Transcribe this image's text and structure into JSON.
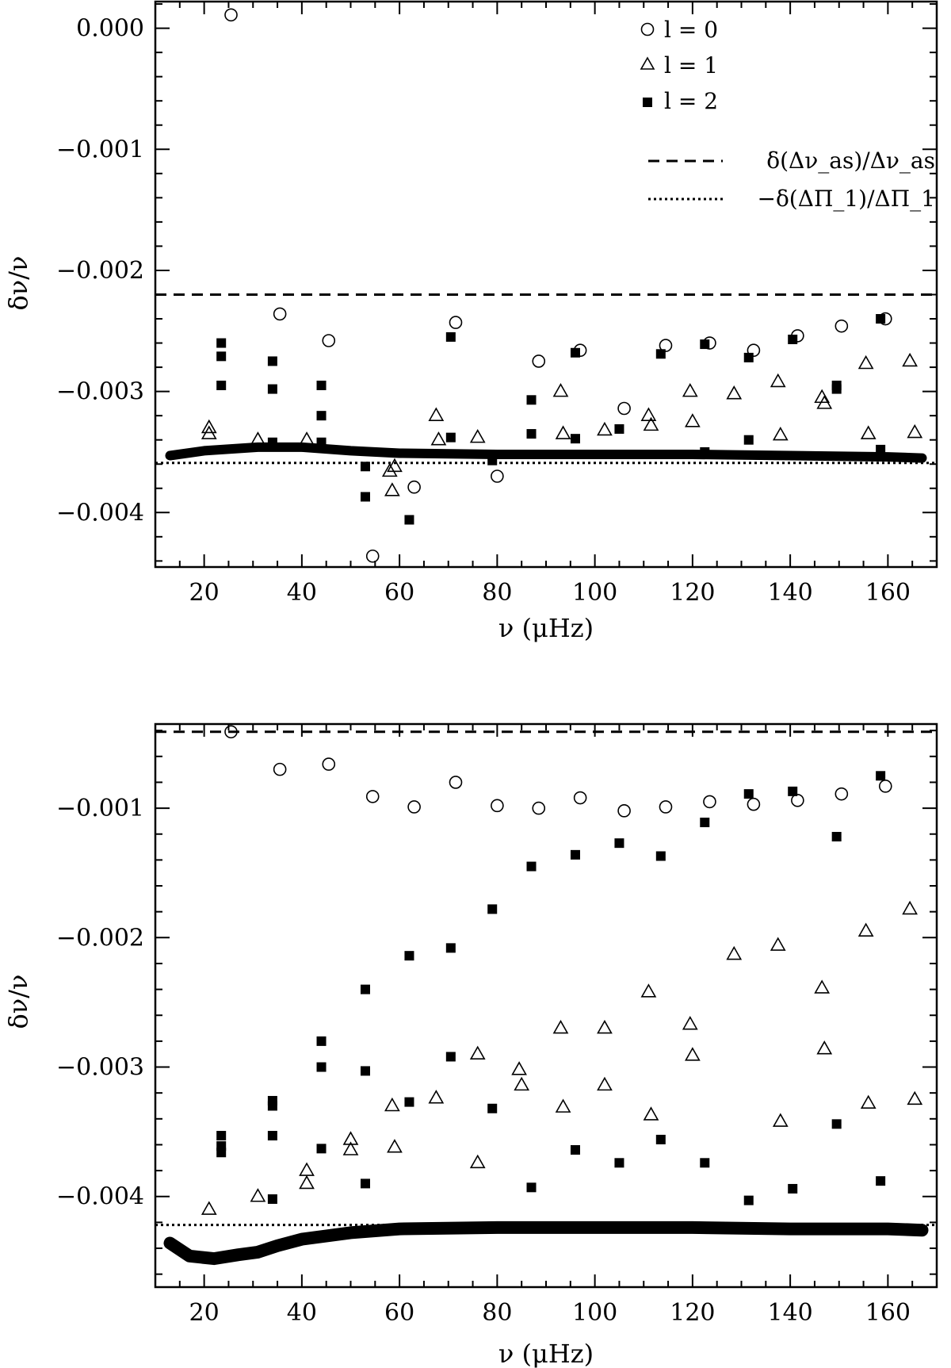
{
  "chart_data": [
    {
      "type": "scatter",
      "title": "",
      "xlabel": "ν (μHz)",
      "ylabel": "δν/ν",
      "xlim": [
        10,
        170
      ],
      "ylim": [
        -0.00445,
        0.00022
      ],
      "xticks": [
        20,
        40,
        60,
        80,
        100,
        120,
        140,
        160
      ],
      "xtick_labels": [
        "20",
        "40",
        "60",
        "80",
        "100",
        "120",
        "140",
        "160"
      ],
      "yticks": [
        0.0,
        -0.001,
        -0.002,
        -0.003,
        -0.004
      ],
      "ytick_labels": [
        "0.000",
        "−0.001",
        "−0.002",
        "−0.003",
        "−0.004"
      ],
      "grid": false,
      "legend_position": "top-right",
      "series": [
        {
          "name": "l = 0",
          "marker": "open-circle",
          "x": [
            25.5,
            35.5,
            45.5,
            54.5,
            63,
            71.5,
            80,
            88.5,
            97,
            106,
            114.5,
            123.5,
            132.5,
            141.5,
            150.5,
            159.5
          ],
          "y": [
            0.00011,
            -0.00236,
            -0.00258,
            -0.00436,
            -0.00379,
            -0.00243,
            -0.0037,
            -0.00275,
            -0.00266,
            -0.00314,
            -0.00262,
            -0.0026,
            -0.00266,
            -0.00254,
            -0.00246,
            -0.0024
          ]
        },
        {
          "name": "l = 1",
          "marker": "open-triangle",
          "x": [
            21,
            21,
            31,
            41,
            58,
            58.5,
            59,
            67.5,
            68,
            76,
            93,
            93.5,
            102,
            111,
            111.5,
            119.5,
            120,
            128.5,
            137.5,
            138,
            146.5,
            147,
            155.5,
            156,
            164.5,
            165.5
          ],
          "y": [
            -0.0033,
            -0.00335,
            -0.0034,
            -0.0034,
            -0.00366,
            -0.00382,
            -0.00362,
            -0.0032,
            -0.0034,
            -0.00338,
            -0.003,
            -0.00335,
            -0.00332,
            -0.0032,
            -0.00328,
            -0.003,
            -0.00325,
            -0.00302,
            -0.00292,
            -0.00336,
            -0.00305,
            -0.0031,
            -0.00277,
            -0.00335,
            -0.00275,
            -0.00334
          ]
        },
        {
          "name": "l = 2",
          "marker": "filled-square",
          "x": [
            23.5,
            23.5,
            23.5,
            34,
            34,
            34,
            44,
            44,
            44,
            53,
            53,
            62,
            70.5,
            70.5,
            79,
            87,
            87,
            96,
            96,
            105,
            113.5,
            122.5,
            122.5,
            131.5,
            131.5,
            140.5,
            149.5,
            149.5,
            158.5,
            158.5
          ],
          "y": [
            -0.0026,
            -0.00271,
            -0.00295,
            -0.00275,
            -0.00298,
            -0.00342,
            -0.00295,
            -0.0032,
            -0.00342,
            -0.00362,
            -0.00387,
            -0.00406,
            -0.00255,
            -0.00338,
            -0.00357,
            -0.00307,
            -0.00335,
            -0.00268,
            -0.00339,
            -0.00331,
            -0.00269,
            -0.00261,
            -0.0035,
            -0.00272,
            -0.0034,
            -0.00257,
            -0.00295,
            -0.00298,
            -0.0024,
            -0.00348
          ]
        },
        {
          "name": "δ(Δν_as)/Δν_as",
          "line_style": "dashed",
          "x": [
            10,
            170
          ],
          "y": [
            -0.0022,
            -0.0022
          ]
        },
        {
          "name": "−δ(ΔΠ_1)/ΔΠ_1",
          "line_style": "dotted",
          "x": [
            10,
            170
          ],
          "y": [
            -0.00359,
            -0.00359
          ]
        }
      ],
      "dense_band": {
        "x": [
          13,
          20,
          31,
          40,
          50,
          60,
          80,
          100,
          120,
          140,
          160,
          167
        ],
        "y": [
          -0.00353,
          -0.00349,
          -0.00346,
          -0.00346,
          -0.00349,
          -0.00351,
          -0.00352,
          -0.00352,
          -0.00352,
          -0.00353,
          -0.00354,
          -0.00355
        ]
      }
    },
    {
      "type": "scatter",
      "title": "",
      "xlabel": "ν (μHz)",
      "ylabel": "δν/ν",
      "xlim": [
        10,
        170
      ],
      "ylim": [
        -0.0047,
        -0.00035
      ],
      "xticks": [
        20,
        40,
        60,
        80,
        100,
        120,
        140,
        160
      ],
      "xtick_labels": [
        "20",
        "40",
        "60",
        "80",
        "100",
        "120",
        "140",
        "160"
      ],
      "yticks": [
        -0.001,
        -0.002,
        -0.003,
        -0.004
      ],
      "ytick_labels": [
        "−0.001",
        "−0.002",
        "−0.003",
        "−0.004"
      ],
      "grid": false,
      "legend_position": "none",
      "series": [
        {
          "name": "l = 0",
          "marker": "open-circle",
          "x": [
            25.5,
            35.5,
            45.5,
            54.5,
            63,
            71.5,
            80,
            88.5,
            97,
            106,
            114.5,
            123.5,
            132.5,
            141.5,
            150.5,
            159.5
          ],
          "y": [
            -0.00041,
            -0.0007,
            -0.00066,
            -0.00091,
            -0.00099,
            -0.0008,
            -0.00098,
            -0.001,
            -0.00092,
            -0.00102,
            -0.00099,
            -0.00095,
            -0.00097,
            -0.00094,
            -0.00089,
            -0.00083
          ]
        },
        {
          "name": "l = 1",
          "marker": "open-triangle",
          "x": [
            21,
            31,
            41,
            41,
            50,
            50,
            58.5,
            59,
            67.5,
            76,
            76,
            84.5,
            85,
            93,
            93.5,
            102,
            102,
            111,
            111.5,
            119.5,
            120,
            128.5,
            137.5,
            138,
            146.5,
            147,
            155.5,
            156,
            164.5,
            165.5
          ],
          "y": [
            -0.0041,
            -0.004,
            -0.0038,
            -0.0039,
            -0.00356,
            -0.00364,
            -0.0033,
            -0.00362,
            -0.00324,
            -0.0029,
            -0.00374,
            -0.00302,
            -0.00314,
            -0.0027,
            -0.00331,
            -0.0027,
            -0.00314,
            -0.00242,
            -0.00337,
            -0.00267,
            -0.00291,
            -0.00213,
            -0.00206,
            -0.00342,
            -0.00239,
            -0.00286,
            -0.00195,
            -0.00328,
            -0.00178,
            -0.00325
          ]
        },
        {
          "name": "l = 2",
          "marker": "filled-square",
          "x": [
            23.5,
            23.5,
            23.5,
            34,
            34,
            34,
            34,
            44,
            44,
            44,
            53,
            53,
            53,
            62,
            62,
            70.5,
            70.5,
            79,
            79,
            87,
            87,
            96,
            96,
            105,
            105,
            113.5,
            113.5,
            122.5,
            122.5,
            131.5,
            131.5,
            140.5,
            140.5,
            149.5,
            149.5,
            158.5,
            158.5
          ],
          "y": [
            -0.00353,
            -0.00361,
            -0.00366,
            -0.00326,
            -0.0033,
            -0.00353,
            -0.00402,
            -0.0028,
            -0.003,
            -0.00363,
            -0.0024,
            -0.00303,
            -0.0039,
            -0.00214,
            -0.00327,
            -0.00208,
            -0.00292,
            -0.00178,
            -0.00332,
            -0.00145,
            -0.00393,
            -0.00136,
            -0.00364,
            -0.00127,
            -0.00374,
            -0.00137,
            -0.00356,
            -0.00111,
            -0.00374,
            -0.00089,
            -0.00403,
            -0.00087,
            -0.00394,
            -0.00122,
            -0.00344,
            -0.00075,
            -0.00388
          ]
        },
        {
          "name": "δ(Δν_as)/Δν_as",
          "line_style": "dashed",
          "x": [
            10,
            170
          ],
          "y": [
            -0.00041,
            -0.00041
          ]
        },
        {
          "name": "−δ(ΔΠ_1)/ΔΠ_1",
          "line_style": "dotted",
          "x": [
            10,
            170
          ],
          "y": [
            -0.00422,
            -0.00422
          ]
        }
      ],
      "dense_band": {
        "x": [
          13,
          17,
          22,
          27,
          31,
          35,
          40,
          50,
          60,
          80,
          100,
          120,
          140,
          160,
          167
        ],
        "y": [
          -0.00436,
          -0.00446,
          -0.00448,
          -0.00445,
          -0.00443,
          -0.00438,
          -0.00433,
          -0.00428,
          -0.00425,
          -0.00424,
          -0.00424,
          -0.00424,
          -0.00425,
          -0.00425,
          -0.00426
        ]
      }
    }
  ]
}
